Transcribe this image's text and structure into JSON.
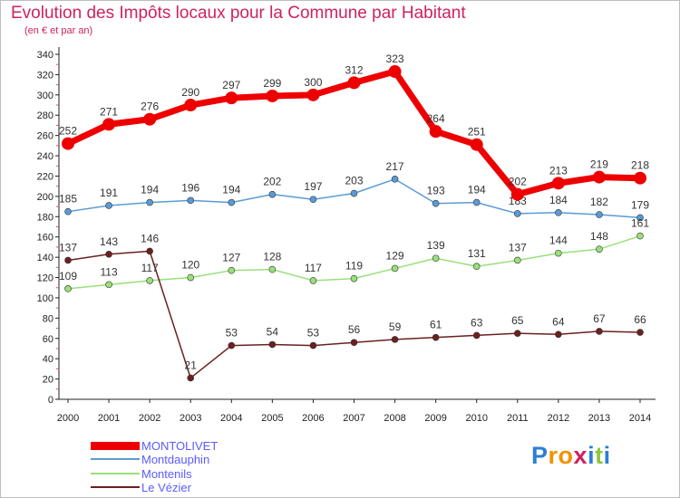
{
  "header": {
    "title": "Evolution des Impôts locaux pour la Commune par Habitant",
    "subtitle": "(en € et par an)"
  },
  "chart_data": {
    "type": "line",
    "title": "Evolution des Impôts locaux pour la Commune par Habitant",
    "subtitle": "(en € et par an)",
    "xlabel": "",
    "ylabel": "",
    "ylim": [
      0,
      340
    ],
    "y_ticks": [
      0,
      20,
      40,
      60,
      80,
      100,
      120,
      140,
      160,
      180,
      200,
      220,
      240,
      260,
      280,
      300,
      320,
      340
    ],
    "grid": false,
    "legend_position": "bottom-left",
    "categories": [
      "2000",
      "2001",
      "2002",
      "2003",
      "2004",
      "2005",
      "2006",
      "2007",
      "2008",
      "2009",
      "2010",
      "2011",
      "2012",
      "2013",
      "2014"
    ],
    "series": [
      {
        "name": "MONTOLIVET",
        "color": "#ee0000",
        "emphasis": true,
        "values": [
          252,
          271,
          276,
          290,
          297,
          299,
          300,
          312,
          323,
          264,
          251,
          202,
          213,
          219,
          218
        ],
        "labels": [
          "252",
          "271",
          "276",
          "290",
          "297",
          "299",
          "300",
          "312",
          "323",
          "264",
          "251",
          "202",
          "213",
          "219",
          "218"
        ]
      },
      {
        "name": "Montdauphin",
        "color": "#5b9bd5",
        "emphasis": false,
        "values": [
          185,
          191,
          194,
          196,
          194,
          202,
          197,
          203,
          217,
          193,
          194,
          183,
          184,
          182,
          179
        ],
        "labels": [
          "185",
          "191",
          "194",
          "196",
          "194",
          "202",
          "197",
          "203",
          "217",
          "193",
          "194",
          "183",
          "184",
          "182",
          "179"
        ]
      },
      {
        "name": "Montenils",
        "color": "#99e07a",
        "emphasis": false,
        "values": [
          109,
          113,
          117,
          120,
          127,
          128,
          117,
          119,
          129,
          139,
          131,
          137,
          144,
          148,
          161
        ],
        "labels": [
          "109",
          "113",
          "117",
          "120",
          "127",
          "128",
          "117",
          "119",
          "129",
          "139",
          "131",
          "137",
          "144",
          "148",
          "161"
        ]
      },
      {
        "name": "Le Vézier",
        "color": "#6b2020",
        "emphasis": false,
        "values": [
          137,
          143,
          146,
          21,
          53,
          54,
          53,
          56,
          59,
          61,
          63,
          65,
          64,
          67,
          66
        ],
        "labels": [
          "137",
          "143",
          "146",
          "21",
          "53",
          "54",
          "53",
          "56",
          "59",
          "61",
          "63",
          "65",
          "64",
          "67",
          "66"
        ]
      }
    ]
  },
  "logo": {
    "letters": [
      "P",
      "r",
      "o",
      "x",
      "i",
      "t",
      "i"
    ],
    "colors": [
      "#2a7fd4",
      "#f39200",
      "#f39200",
      "#d0215f",
      "#2a7fd4",
      "#8cc63f",
      "#2a7fd4"
    ]
  }
}
